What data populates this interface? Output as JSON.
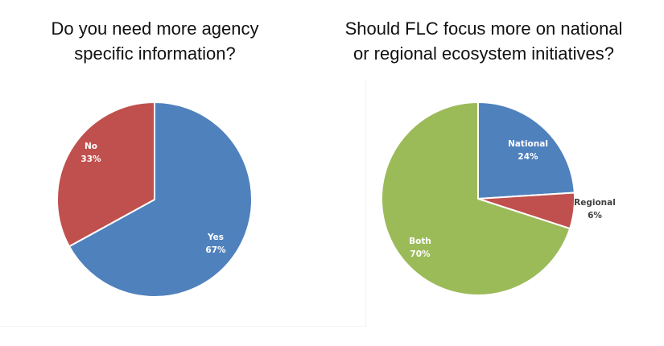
{
  "chart_data": [
    {
      "type": "pie",
      "title_lines": [
        "Do you need more agency",
        "specific information?"
      ],
      "slices": [
        {
          "label": "Yes",
          "value": 67,
          "display": "67%",
          "color": "#4F81BD"
        },
        {
          "label": "No",
          "value": 33,
          "display": "33%",
          "color": "#C0504D"
        }
      ]
    },
    {
      "type": "pie",
      "title_lines": [
        "Should FLC focus more on national",
        "or regional ecosystem initiatives?"
      ],
      "slices": [
        {
          "label": "National",
          "value": 24,
          "display": "24%",
          "color": "#4F81BD"
        },
        {
          "label": "Regional",
          "value": 6,
          "display": "6%",
          "color": "#C0504D"
        },
        {
          "label": "Both",
          "value": 70,
          "display": "70%",
          "color": "#9BBB59"
        }
      ]
    }
  ]
}
